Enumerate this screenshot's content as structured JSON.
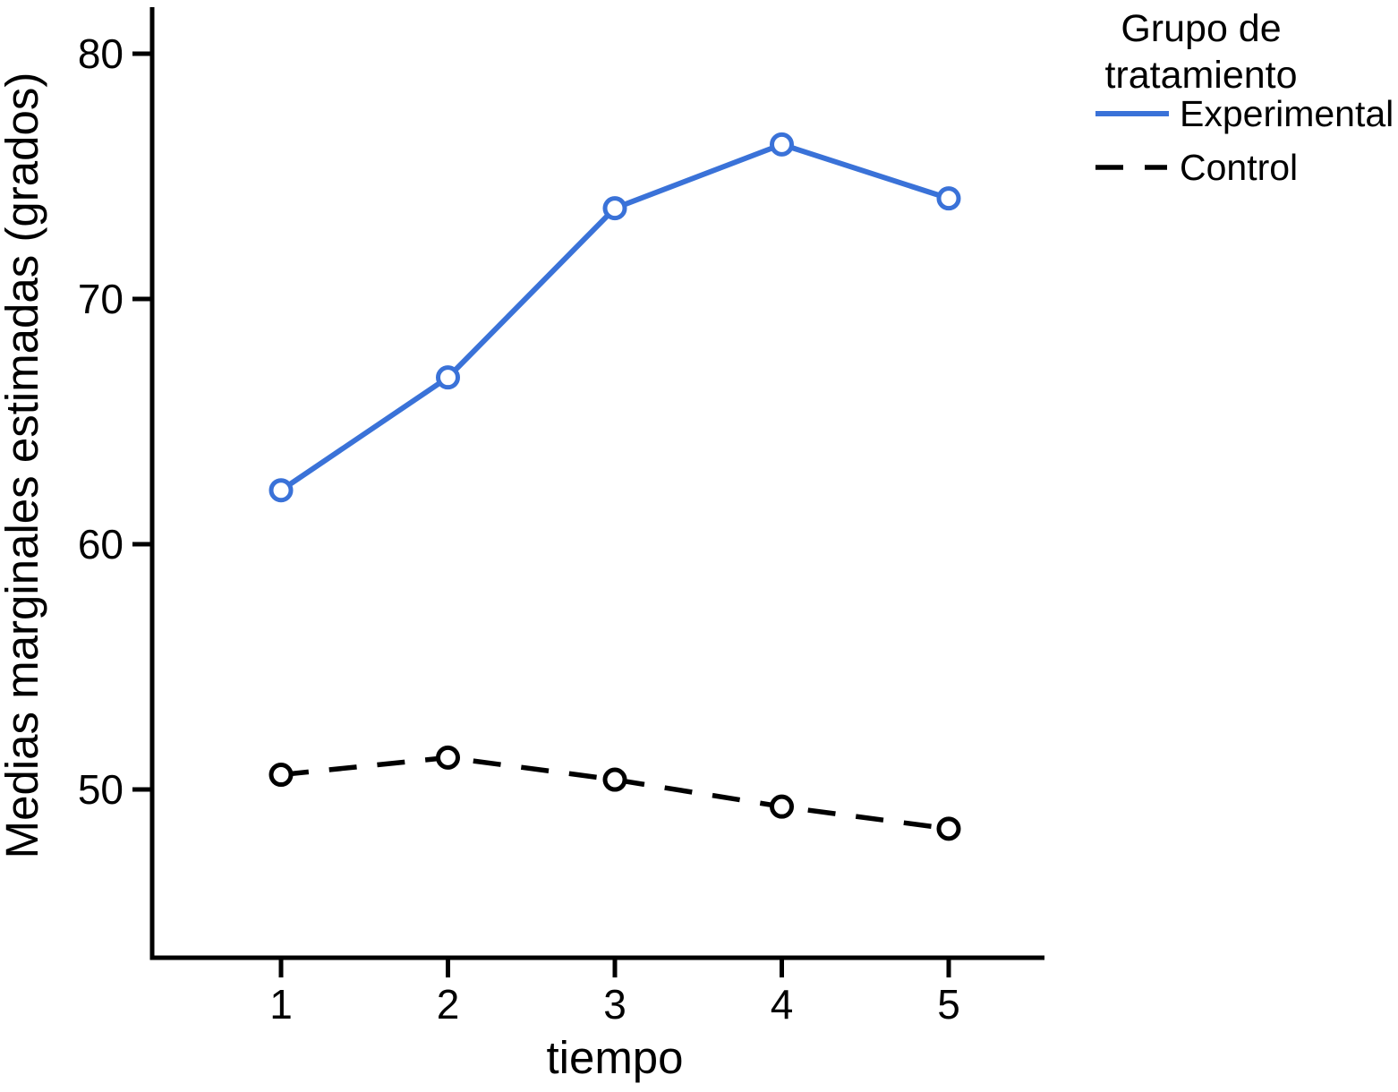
{
  "chart_data": {
    "type": "line",
    "title": "",
    "xlabel": "tiempo",
    "ylabel": "Medias marginales estimadas (grados)",
    "x": [
      1,
      2,
      3,
      4,
      5
    ],
    "xtick_labels": [
      "1",
      "2",
      "3",
      "4",
      "5"
    ],
    "yticks": [
      80,
      70,
      60,
      50
    ],
    "ylim": [
      43,
      82
    ],
    "xlim": [
      0.2,
      5.6
    ],
    "grid": false,
    "legend_position": "top-right",
    "series": [
      {
        "name": "Experimental",
        "color": "#3A72D8",
        "line_style": "solid",
        "marker": "open-circle",
        "values": [
          62.2,
          66.8,
          73.7,
          76.3,
          74.1
        ]
      },
      {
        "name": "Control",
        "color": "#000000",
        "line_style": "dashed",
        "marker": "open-circle",
        "values": [
          50.6,
          51.3,
          50.4,
          49.3,
          48.4
        ]
      }
    ],
    "legend": {
      "title": "Grupo de tratamiento",
      "title_lines": [
        "Grupo de",
        "tratamiento"
      ]
    }
  },
  "colors": {
    "experimental": "#3A72D8",
    "control": "#000000",
    "axis": "#000000",
    "background": "#FFFFFF"
  }
}
